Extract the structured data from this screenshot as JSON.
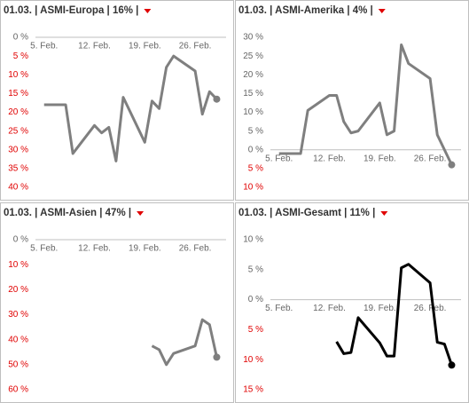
{
  "chart_data": [
    {
      "type": "line",
      "title": "01.03. | ASMI-Europa | 16% |",
      "color": "#7f7f7f",
      "neg_tick_color": "#e00000",
      "pos_tick_color": "#666666",
      "x": [
        5,
        8,
        9,
        12,
        13,
        14,
        15,
        16,
        19,
        20,
        21,
        22,
        23,
        26,
        27,
        28,
        29
      ],
      "values": [
        -18,
        -18,
        -31,
        -23.5,
        -25.5,
        -24,
        -33,
        -16,
        -28,
        -17,
        -19,
        -8,
        -5,
        -9,
        -20.5,
        -14.5,
        -16.5
      ],
      "xlim": [
        3.8,
        30.3
      ],
      "xticks": [
        {
          "value": 5,
          "label": "5. Feb."
        },
        {
          "value": 12,
          "label": "12. Feb."
        },
        {
          "value": 19,
          "label": "19. Feb."
        },
        {
          "value": 26,
          "label": "26. Feb."
        }
      ],
      "ylim": [
        -40,
        0
      ],
      "yticks": [
        {
          "value": 0,
          "label": "0 %"
        },
        {
          "value": -5,
          "label": "5 %"
        },
        {
          "value": -10,
          "label": "10 %"
        },
        {
          "value": -15,
          "label": "15 %"
        },
        {
          "value": -20,
          "label": "20 %"
        },
        {
          "value": -25,
          "label": "25 %"
        },
        {
          "value": -30,
          "label": "30 %"
        },
        {
          "value": -35,
          "label": "35 %"
        },
        {
          "value": -40,
          "label": "40 %"
        }
      ]
    },
    {
      "type": "line",
      "title": "01.03. | ASMI-Amerika | 4% |",
      "color": "#7f7f7f",
      "neg_tick_color": "#e00000",
      "pos_tick_color": "#666666",
      "x": [
        5,
        8,
        9,
        12,
        13,
        14,
        15,
        16,
        19,
        20,
        21,
        22,
        23,
        26,
        27,
        29
      ],
      "values": [
        -1,
        -1,
        10.5,
        14.5,
        14.5,
        7.5,
        4.5,
        5,
        12.5,
        4,
        5,
        28,
        23,
        19,
        4,
        -4
      ],
      "xlim": [
        3.8,
        30.3
      ],
      "xticks": [
        {
          "value": 5,
          "label": "5. Feb."
        },
        {
          "value": 12,
          "label": "12. Feb."
        },
        {
          "value": 19,
          "label": "19. Feb."
        },
        {
          "value": 26,
          "label": "26. Feb."
        }
      ],
      "ylim": [
        -10,
        30
      ],
      "yticks": [
        {
          "value": 30,
          "label": "30 %"
        },
        {
          "value": 25,
          "label": "25 %"
        },
        {
          "value": 20,
          "label": "20 %"
        },
        {
          "value": 15,
          "label": "15 %"
        },
        {
          "value": 10,
          "label": "10 %"
        },
        {
          "value": 5,
          "label": "5 %"
        },
        {
          "value": 0,
          "label": "0 %"
        },
        {
          "value": -5,
          "label": "5 %"
        },
        {
          "value": -10,
          "label": "10 %"
        }
      ]
    },
    {
      "type": "line",
      "title": "01.03. | ASMI-Asien | 47% |",
      "color": "#7f7f7f",
      "neg_tick_color": "#e00000",
      "pos_tick_color": "#666666",
      "x": [
        20,
        21,
        22,
        23,
        26,
        27,
        28,
        29
      ],
      "values": [
        -42.5,
        -44,
        -50,
        -45.5,
        -42.5,
        -32,
        -34,
        -47
      ],
      "xlim": [
        3.8,
        30.3
      ],
      "xticks": [
        {
          "value": 5,
          "label": "5. Feb."
        },
        {
          "value": 12,
          "label": "12. Feb."
        },
        {
          "value": 19,
          "label": "19. Feb."
        },
        {
          "value": 26,
          "label": "26. Feb."
        }
      ],
      "ylim": [
        -60,
        0
      ],
      "yticks": [
        {
          "value": 0,
          "label": "0 %"
        },
        {
          "value": -10,
          "label": "10 %"
        },
        {
          "value": -20,
          "label": "20 %"
        },
        {
          "value": -30,
          "label": "30 %"
        },
        {
          "value": -40,
          "label": "40 %"
        },
        {
          "value": -50,
          "label": "50 %"
        },
        {
          "value": -60,
          "label": "60 %"
        }
      ]
    },
    {
      "type": "line",
      "title": "01.03. | ASMI-Gesamt | 11% |",
      "color": "#000000",
      "neg_tick_color": "#e00000",
      "pos_tick_color": "#666666",
      "x": [
        13,
        14,
        15,
        16,
        19,
        20,
        21,
        22,
        23,
        26,
        27,
        28,
        29
      ],
      "values": [
        -7,
        -9,
        -8.8,
        -3,
        -7.2,
        -9.4,
        -9.4,
        5.3,
        5.9,
        2.8,
        -7.1,
        -7.4,
        -10.9
      ],
      "xlim": [
        3.8,
        30.3
      ],
      "xticks": [
        {
          "value": 5,
          "label": "5. Feb."
        },
        {
          "value": 12,
          "label": "12. Feb."
        },
        {
          "value": 19,
          "label": "19. Feb."
        },
        {
          "value": 26,
          "label": "26. Feb."
        }
      ],
      "ylim": [
        -15,
        10
      ],
      "yticks": [
        {
          "value": 10,
          "label": "10 %"
        },
        {
          "value": 5,
          "label": "5 %"
        },
        {
          "value": 0,
          "label": "0 %"
        },
        {
          "value": -5,
          "label": "5 %"
        },
        {
          "value": -10,
          "label": "10 %"
        },
        {
          "value": -15,
          "label": "15 %"
        }
      ]
    }
  ]
}
